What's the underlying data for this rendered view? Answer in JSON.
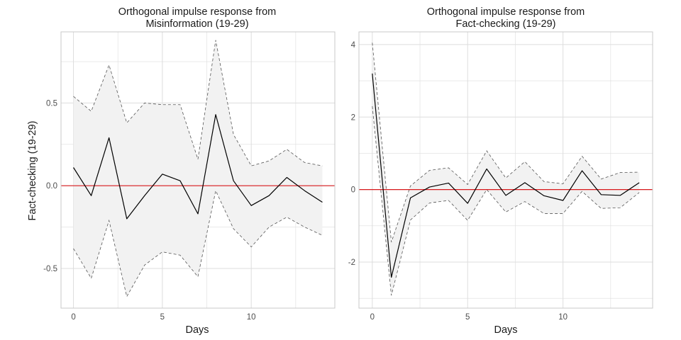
{
  "chart_data": [
    {
      "type": "line",
      "title": "Orthogonal impulse response from\nMisinformation (19-29)",
      "title_lines": [
        "Orthogonal impulse response from",
        "Misinformation (19-29)"
      ],
      "xlabel": "Days",
      "ylabel": "Fact-checking  (19-29)",
      "xlim": [
        -0.7,
        14.7
      ],
      "ylim": [
        -0.74,
        0.93
      ],
      "xticks": [
        0,
        5,
        10
      ],
      "yticks": [
        -0.5,
        0.0,
        0.5
      ],
      "ytick_labels": [
        "-0.5",
        "0.0",
        "0.5"
      ],
      "grid": true,
      "x": [
        0,
        1,
        2,
        3,
        4,
        5,
        6,
        7,
        8,
        9,
        10,
        11,
        12,
        13,
        14
      ],
      "series": [
        {
          "role": "response",
          "values": [
            0.11,
            -0.06,
            0.29,
            -0.2,
            -0.06,
            0.07,
            0.03,
            -0.17,
            0.43,
            0.03,
            -0.12,
            -0.06,
            0.05,
            -0.03,
            -0.1
          ]
        },
        {
          "role": "upper",
          "values": [
            0.54,
            0.45,
            0.73,
            0.38,
            0.5,
            0.49,
            0.49,
            0.16,
            0.88,
            0.31,
            0.12,
            0.15,
            0.22,
            0.14,
            0.12
          ]
        },
        {
          "role": "lower",
          "values": [
            -0.38,
            -0.56,
            -0.21,
            -0.67,
            -0.48,
            -0.4,
            -0.42,
            -0.55,
            -0.03,
            -0.26,
            -0.37,
            -0.25,
            -0.19,
            -0.25,
            -0.3
          ]
        }
      ],
      "reference_line": 0
    },
    {
      "type": "line",
      "title": "Orthogonal impulse response from\nFact-checking  (19-29)",
      "title_lines": [
        "Orthogonal impulse response from",
        "Fact-checking  (19-29)"
      ],
      "xlabel": "Days",
      "ylabel": "",
      "xlim": [
        -0.7,
        14.7
      ],
      "ylim": [
        -3.27,
        4.35
      ],
      "xticks": [
        0,
        5,
        10
      ],
      "yticks": [
        -2,
        0,
        2,
        4
      ],
      "ytick_labels": [
        "-2",
        "0",
        "2",
        "4"
      ],
      "grid": true,
      "x": [
        0,
        1,
        2,
        3,
        4,
        5,
        6,
        7,
        8,
        9,
        10,
        11,
        12,
        13,
        14
      ],
      "series": [
        {
          "role": "response",
          "values": [
            3.2,
            -2.42,
            -0.23,
            0.07,
            0.18,
            -0.38,
            0.57,
            -0.16,
            0.19,
            -0.17,
            -0.3,
            0.52,
            -0.14,
            -0.16,
            0.19
          ]
        },
        {
          "role": "upper",
          "values": [
            4.05,
            -1.45,
            0.1,
            0.53,
            0.6,
            0.14,
            1.07,
            0.32,
            0.77,
            0.22,
            0.16,
            0.92,
            0.29,
            0.47,
            0.48
          ]
        },
        {
          "role": "lower",
          "values": [
            2.3,
            -2.92,
            -0.84,
            -0.37,
            -0.3,
            -0.85,
            0.0,
            -0.62,
            -0.33,
            -0.66,
            -0.66,
            -0.05,
            -0.52,
            -0.5,
            -0.08
          ]
        }
      ],
      "reference_line": 0
    }
  ],
  "colors": {
    "response_line": "#000000",
    "band_fill": "#f2f2f2",
    "band_border": "#555555",
    "zero_line": "#d7191c",
    "grid": "#dddddd",
    "panel_border": "#c8c8c8"
  }
}
